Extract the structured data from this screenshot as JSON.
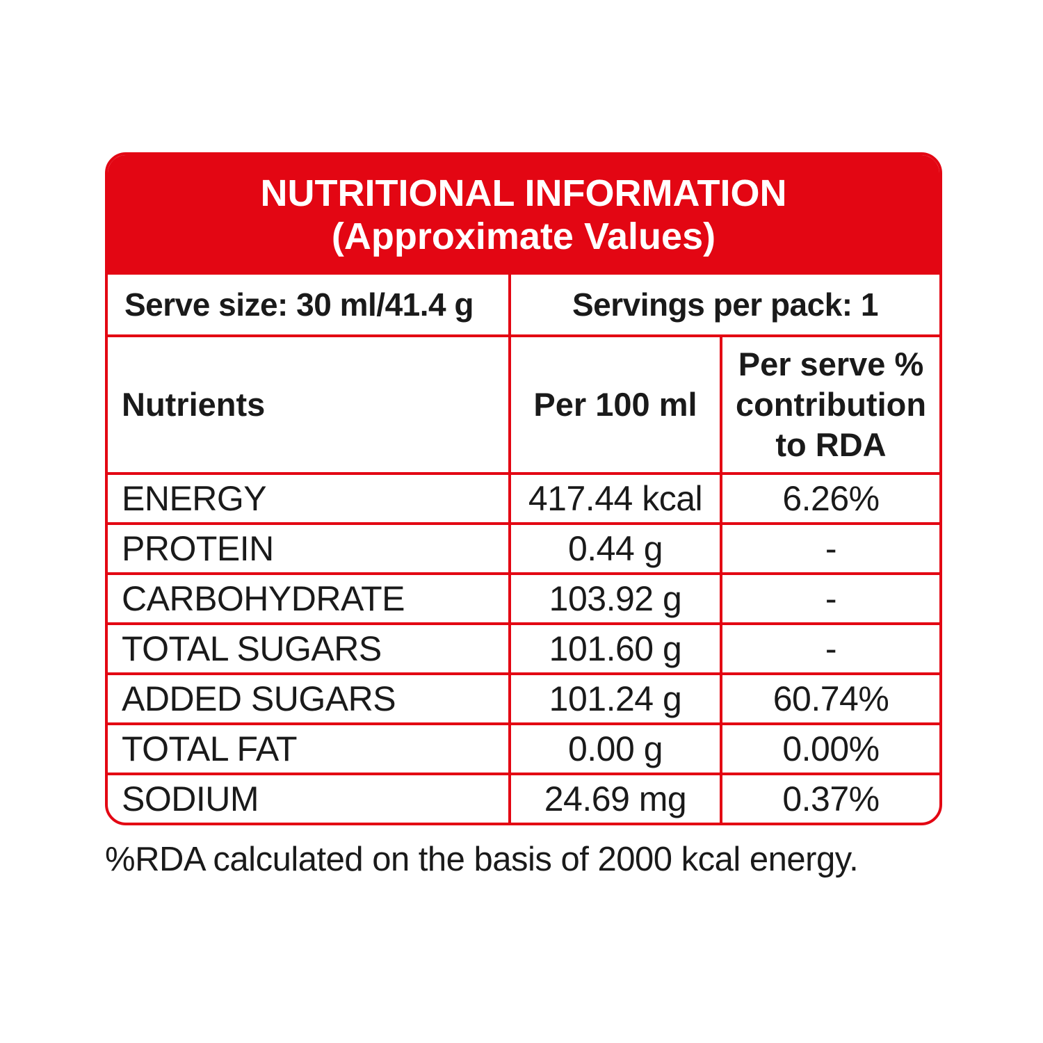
{
  "header": {
    "title": "NUTRITIONAL INFORMATION",
    "subtitle": "(Approximate Values)"
  },
  "serve": {
    "size_label": "Serve size: 30 ml/41.4 g",
    "servings_label": "Servings per pack: 1"
  },
  "columns": {
    "nutrients": "Nutrients",
    "per100": "Per 100 ml",
    "rda_line1": "Per serve %",
    "rda_line2": "contribution",
    "rda_line3": "to RDA"
  },
  "rows": [
    {
      "name": "ENERGY",
      "per100": "417.44 kcal",
      "rda": "6.26%"
    },
    {
      "name": "PROTEIN",
      "per100": "0.44 g",
      "rda": "-"
    },
    {
      "name": "CARBOHYDRATE",
      "per100": "103.92 g",
      "rda": "-"
    },
    {
      "name": "TOTAL SUGARS",
      "per100": "101.60 g",
      "rda": "-"
    },
    {
      "name": "ADDED SUGARS",
      "per100": "101.24 g",
      "rda": "60.74%"
    },
    {
      "name": "TOTAL FAT",
      "per100": "0.00 g",
      "rda": "0.00%"
    },
    {
      "name": "SODIUM",
      "per100": "24.69 mg",
      "rda": "0.37%"
    }
  ],
  "footnote": "%RDA calculated on the basis of 2000 kcal energy.",
  "colors": {
    "accent": "#e30613",
    "text": "#1a1a1a"
  }
}
